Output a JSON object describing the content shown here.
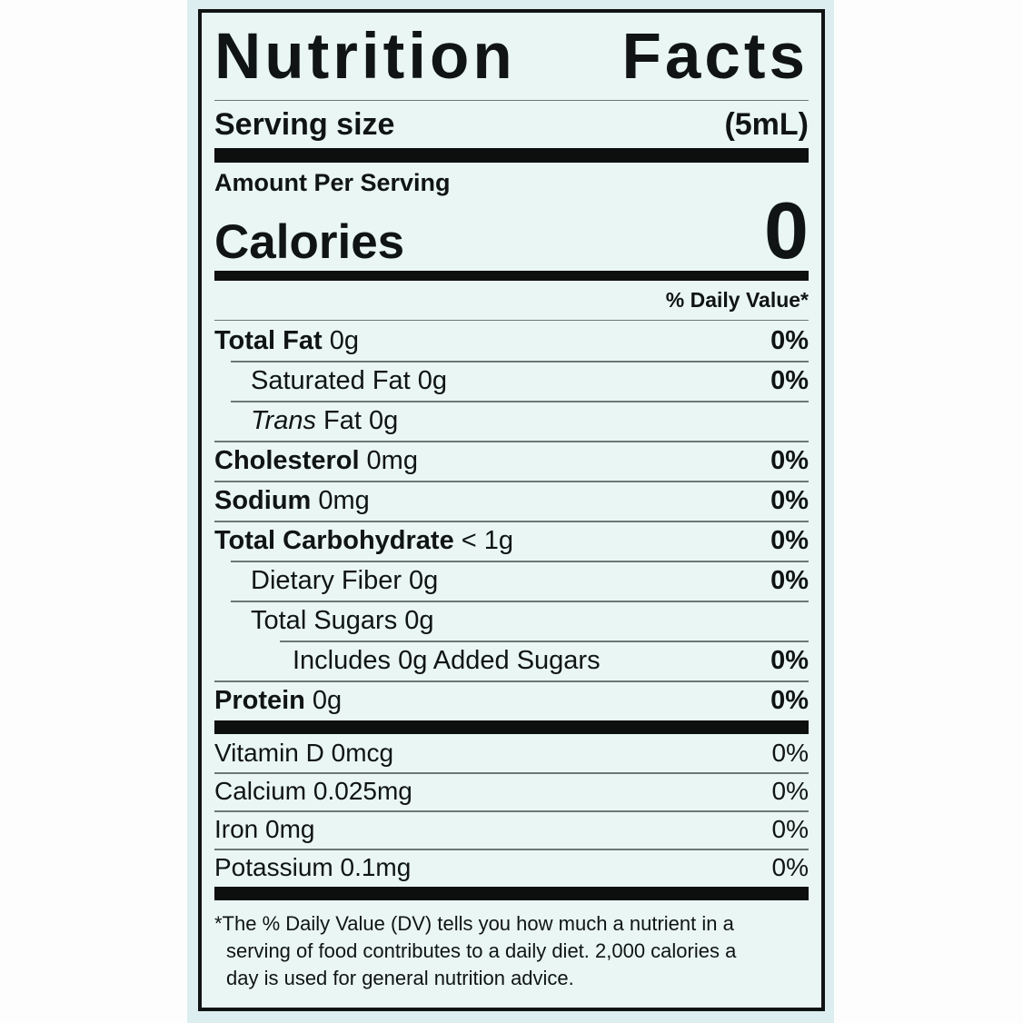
{
  "label": {
    "title": {
      "word1": "Nutrition",
      "word2": "Facts"
    },
    "serving": {
      "label": "Serving size",
      "value": "(5mL)"
    },
    "amount_per_serving": "Amount Per Serving",
    "calories": {
      "label": "Calories",
      "value": "0"
    },
    "daily_value_header": "% Daily Value*",
    "nutrients": [
      {
        "name": "Total Fat",
        "amount": "0g",
        "dv": "0%"
      },
      {
        "name": "Saturated Fat",
        "amount": "0g",
        "dv": "0%"
      },
      {
        "name": "Trans",
        "amount": "Fat 0g",
        "dv": ""
      },
      {
        "name": "Cholesterol",
        "amount": "0mg",
        "dv": "0%"
      },
      {
        "name": "Sodium",
        "amount": "0mg",
        "dv": "0%"
      },
      {
        "name": "Total Carbohydrate",
        "amount": "< 1g",
        "dv": "0%"
      },
      {
        "name": "Dietary Fiber",
        "amount": "0g",
        "dv": "0%"
      },
      {
        "name": "Total Sugars",
        "amount": "0g",
        "dv": ""
      },
      {
        "name": "Includes 0g Added Sugars",
        "amount": "",
        "dv": "0%"
      },
      {
        "name": "Protein",
        "amount": "0g",
        "dv": "0%"
      }
    ],
    "micronutrients": [
      {
        "name": "Vitamin D 0mcg",
        "dv": "0%"
      },
      {
        "name": "Calcium 0.025mg",
        "dv": "0%"
      },
      {
        "name": "Iron 0mg",
        "dv": "0%"
      },
      {
        "name": "Potassium 0.1mg",
        "dv": "0%"
      }
    ],
    "footnote": {
      "line1": "*The % Daily Value (DV) tells you how much a nutrient in a",
      "line2": "serving of food contributes to a daily diet. 2,000 calories a",
      "line3": "day is used for general nutrition advice."
    },
    "colors": {
      "label_bg": "#e9f6f4",
      "sticker_bg": "#dceef0",
      "page_bg": "#fdfdfd",
      "ink": "#101414"
    }
  }
}
